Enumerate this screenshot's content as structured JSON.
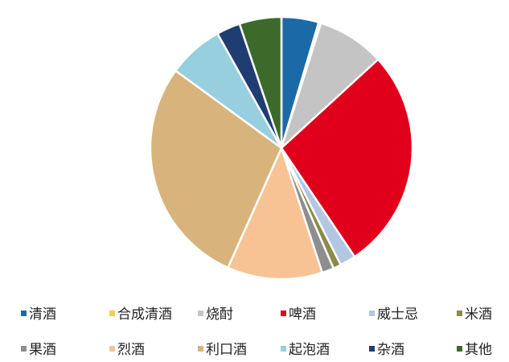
{
  "chart_data": {
    "type": "pie",
    "title": "",
    "legend_position": "bottom",
    "series": [
      {
        "name": "清酒",
        "value": 4.7,
        "color": "#1c69a8"
      },
      {
        "name": "合成清酒",
        "value": 0.3,
        "color": "#f0cf50"
      },
      {
        "name": "烧酎",
        "value": 8.5,
        "color": "#c4c4c4"
      },
      {
        "name": "啤酒",
        "value": 28.0,
        "color": "#e0001b"
      },
      {
        "name": "威士忌",
        "value": 2.0,
        "color": "#b3c6e2"
      },
      {
        "name": "米酒",
        "value": 1.0,
        "color": "#8d8a48"
      },
      {
        "name": "果酒",
        "value": 1.5,
        "color": "#8e8e8e"
      },
      {
        "name": "烈酒",
        "value": 12.0,
        "color": "#f7c394"
      },
      {
        "name": "利口酒",
        "value": 29.0,
        "color": "#d8b37c"
      },
      {
        "name": "起泡酒",
        "value": 7.0,
        "color": "#97cfdf"
      },
      {
        "name": "杂酒",
        "value": 3.0,
        "color": "#203d72"
      },
      {
        "name": "其他",
        "value": 5.3,
        "color": "#3d6a2b"
      }
    ]
  }
}
